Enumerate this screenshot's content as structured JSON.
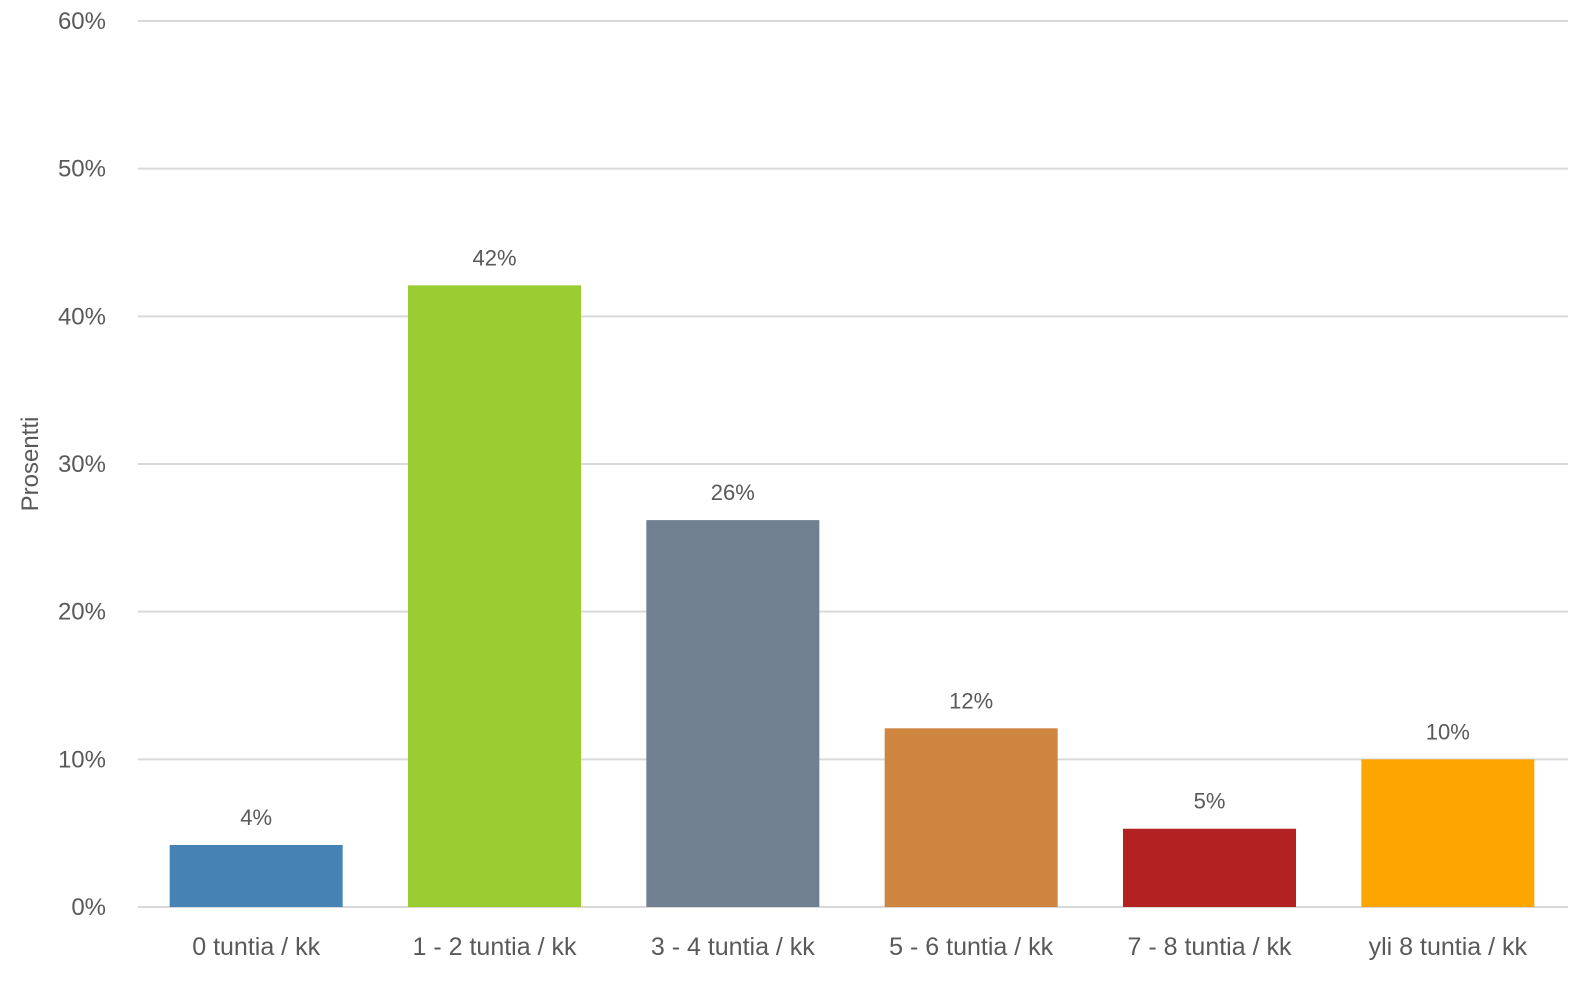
{
  "chart_data": {
    "type": "bar",
    "title": "",
    "xlabel": "",
    "ylabel": "Prosentti",
    "ylim": [
      0,
      60
    ],
    "yticks": [
      0,
      10,
      20,
      30,
      40,
      50,
      60
    ],
    "ytick_labels": [
      "0%",
      "10%",
      "20%",
      "30%",
      "40%",
      "50%",
      "60%"
    ],
    "grid": true,
    "legend": "none",
    "categories": [
      "0 tuntia / kk",
      "1 - 2 tuntia / kk",
      "3 - 4 tuntia / kk",
      "5 - 6 tuntia / kk",
      "7 - 8 tuntia / kk",
      "yli 8 tuntia / kk"
    ],
    "values": [
      4.2,
      42.1,
      26.2,
      12.1,
      5.3,
      10.0
    ],
    "data_labels": [
      "4%",
      "42%",
      "26%",
      "12%",
      "5%",
      "10%"
    ],
    "colors": [
      "#4682b4",
      "#9acd32",
      "#708090",
      "#cd853f",
      "#b22222",
      "#ffa500"
    ]
  }
}
